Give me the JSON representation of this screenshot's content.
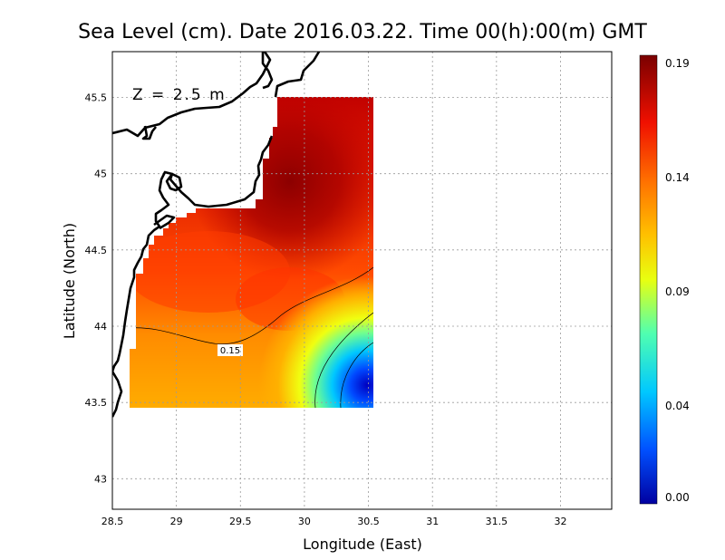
{
  "title": "Sea Level (cm). Date 2016.03.22. Time 00(h):00(m) GMT",
  "annotation": "Z = 2.5 m",
  "chart_data": {
    "type": "heatmap",
    "title": "Sea Level (cm). Date 2016.03.22. Time 00(h):00(m) GMT",
    "xlabel": "Longitude (East)",
    "ylabel": "Latitude (North)",
    "xlim": [
      28.5,
      32.4
    ],
    "ylim": [
      42.8,
      45.8
    ],
    "xticks": [
      "28.5",
      "29",
      "29.5",
      "30",
      "30.5",
      "31",
      "31.5",
      "32"
    ],
    "yticks": [
      "43",
      "43.5",
      "44",
      "44.5",
      "45",
      "45.5"
    ],
    "grid": true,
    "data_region": {
      "lon": [
        28.63,
        30.5
      ],
      "lat": [
        43.5,
        45.5
      ]
    },
    "contours": [
      {
        "level": 0.15,
        "label": "0.15"
      }
    ],
    "colorbar": {
      "min": 0.0,
      "max": 0.19,
      "ticks": [
        "0.00",
        "0.04",
        "0.09",
        "0.14",
        "0.19"
      ],
      "colors": [
        "#0000a0",
        "#0060ff",
        "#00d8ff",
        "#60ff90",
        "#f0ff00",
        "#ffa000",
        "#ff3000",
        "#a00000",
        "#800000"
      ]
    },
    "land_color": "#ffffff",
    "coast_color": "#000000"
  }
}
